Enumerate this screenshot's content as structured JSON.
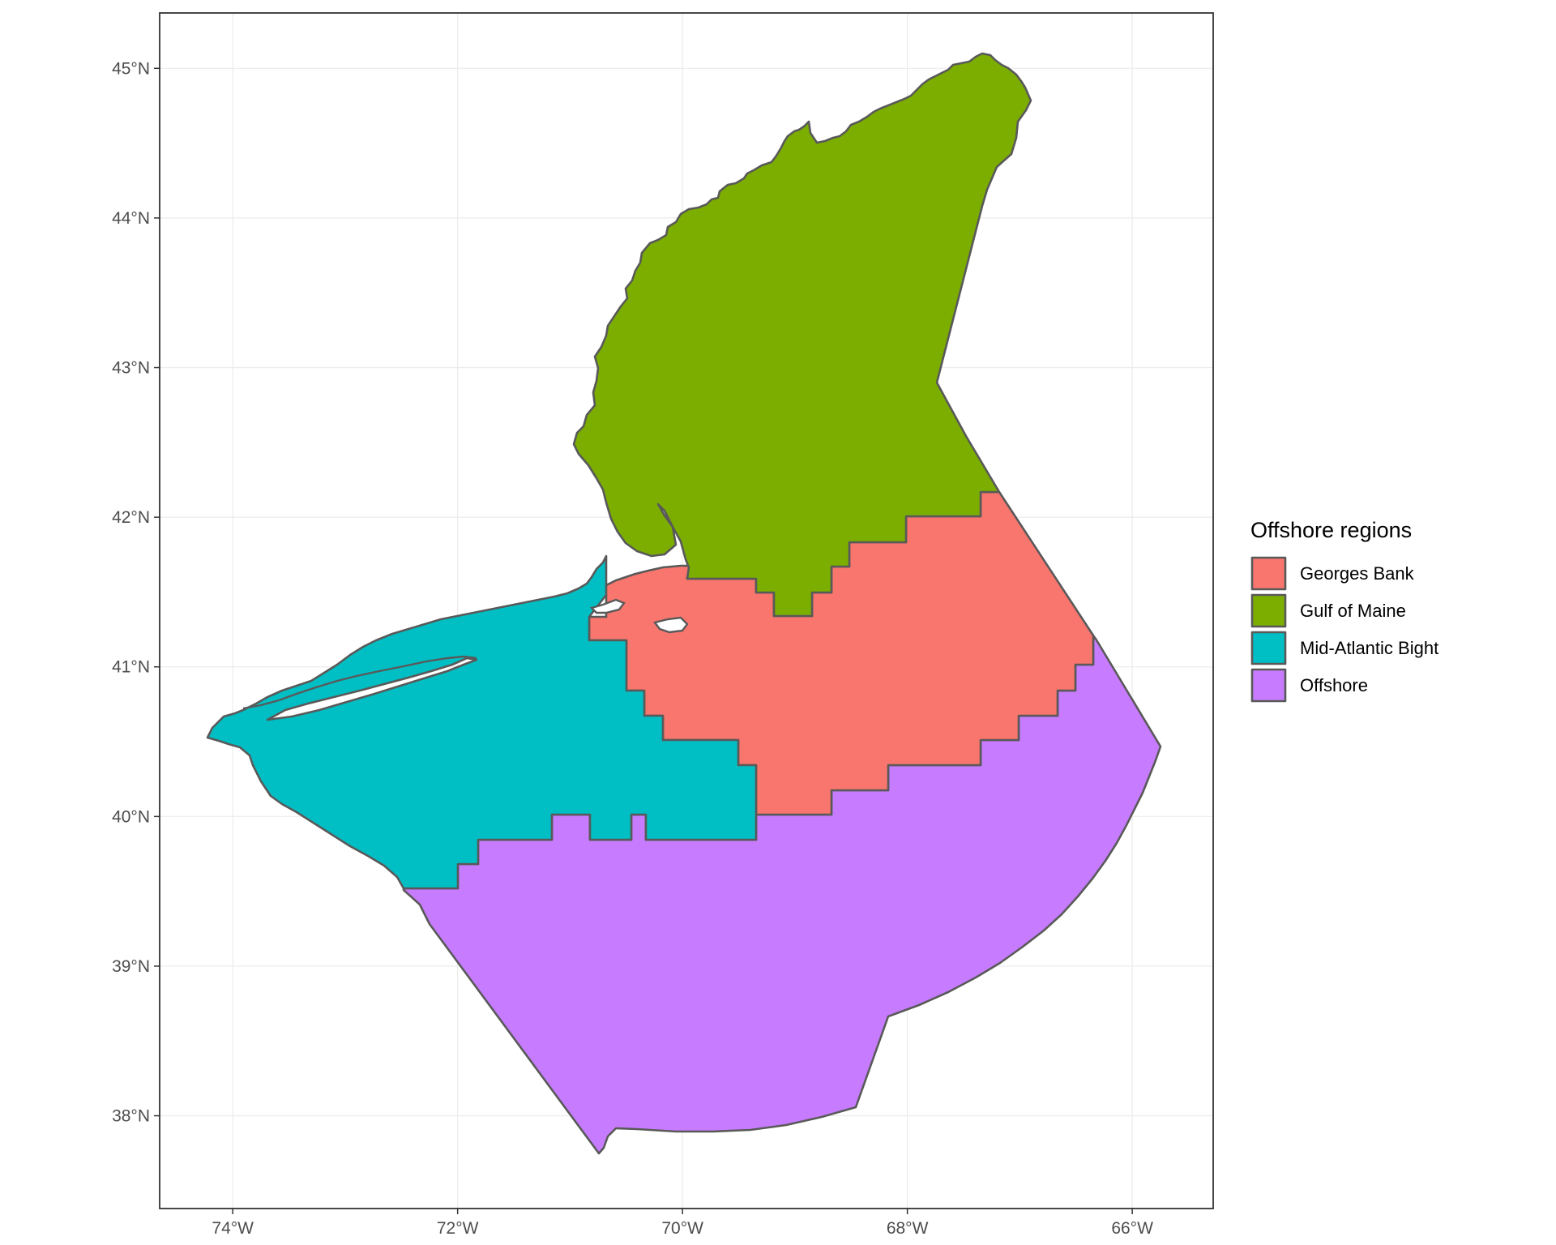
{
  "legend": {
    "title": "Offshore regions",
    "items": [
      {
        "key": "georges",
        "label": "Georges Bank",
        "color": "#F8766D"
      },
      {
        "key": "gulf",
        "label": "Gulf of Maine",
        "color": "#7CAE00"
      },
      {
        "key": "midatlantic",
        "label": "Mid-Atlantic Bight",
        "color": "#00BFC4"
      },
      {
        "key": "offshore",
        "label": "Offshore",
        "color": "#C77CFF"
      }
    ]
  },
  "axes": {
    "x_ticks": [
      {
        "value": -74,
        "label": "74°W"
      },
      {
        "value": -72,
        "label": "72°W"
      },
      {
        "value": -70,
        "label": "70°W"
      },
      {
        "value": -68,
        "label": "68°W"
      },
      {
        "value": -66,
        "label": "66°W"
      }
    ],
    "y_ticks": [
      {
        "value": 45,
        "label": "45°N"
      },
      {
        "value": 44,
        "label": "44°N"
      },
      {
        "value": 43,
        "label": "43°N"
      },
      {
        "value": 42,
        "label": "42°N"
      },
      {
        "value": 41,
        "label": "41°N"
      },
      {
        "value": 40,
        "label": "40°N"
      },
      {
        "value": 39,
        "label": "39°N"
      },
      {
        "value": 38,
        "label": "38°N"
      }
    ],
    "lon_range": [
      -74.65,
      -65.28
    ],
    "lat_range": [
      37.38,
      45.37
    ]
  },
  "theme": {
    "background": "#ffffff",
    "grid": true,
    "panel_border": "#333333",
    "region_outline": "#595959"
  }
}
